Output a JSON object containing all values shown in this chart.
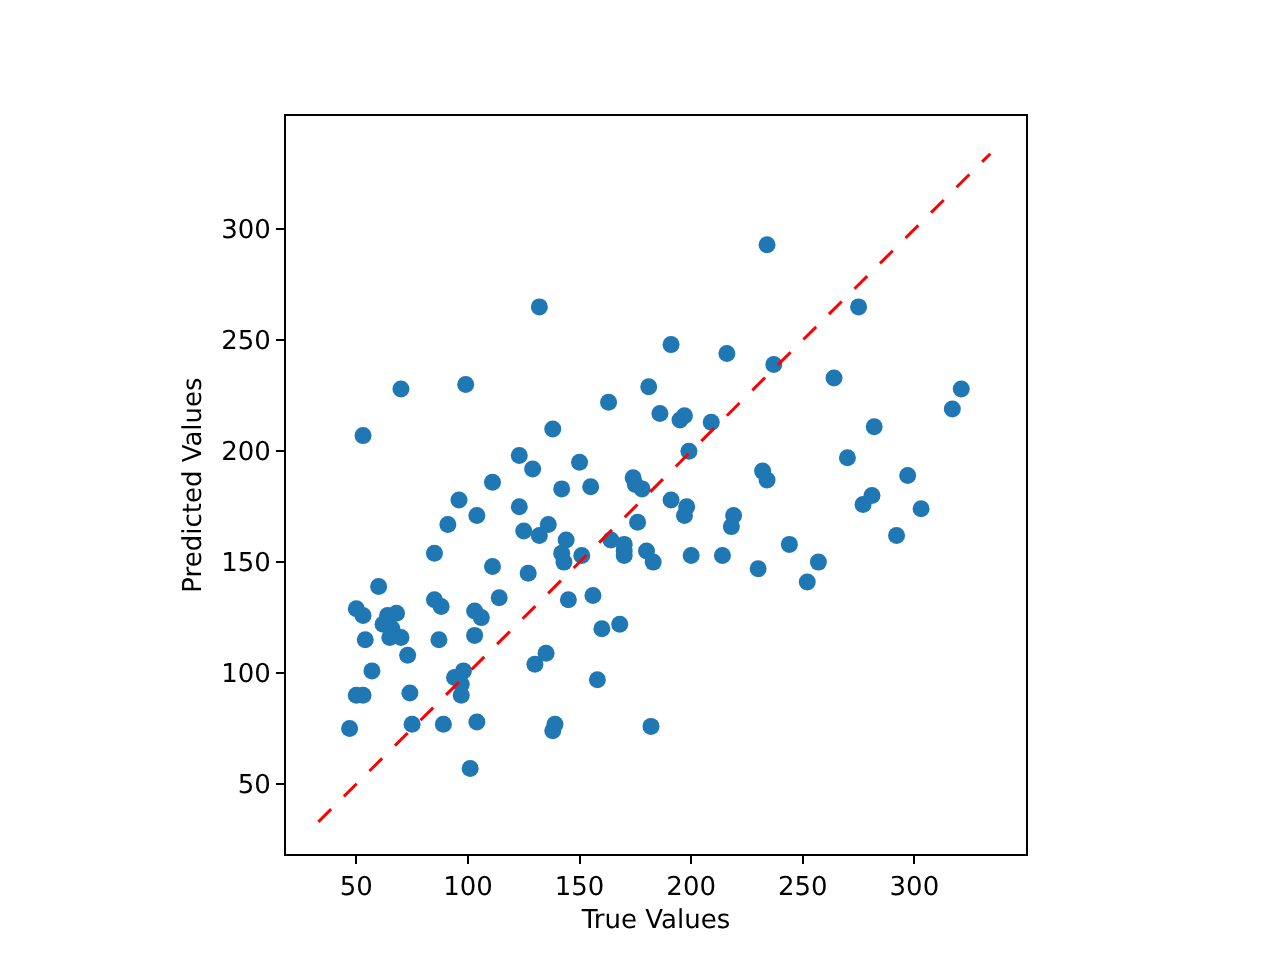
{
  "chart_data": {
    "type": "scatter",
    "xlabel": "True Values",
    "ylabel": "Predicted Values",
    "xlim": [
      18.5,
      350
    ],
    "ylim": [
      18.5,
      351
    ],
    "xticks": [
      50,
      100,
      150,
      200,
      250,
      300
    ],
    "yticks": [
      50,
      100,
      150,
      200,
      250,
      300
    ],
    "marker": "circle",
    "series": [
      {
        "color": "#1f77b4",
        "x": [
          47,
          50,
          53,
          50,
          53,
          53,
          54,
          57,
          60,
          62,
          64,
          66,
          68,
          65,
          70,
          70,
          73,
          74,
          75,
          85,
          85,
          87,
          88,
          89,
          91,
          94,
          96,
          97,
          97,
          98,
          99,
          101,
          103,
          103,
          104,
          104,
          106,
          111,
          111,
          114,
          123,
          123,
          125,
          127,
          129,
          130,
          132,
          132,
          135,
          136,
          138,
          138,
          139,
          142,
          142,
          144,
          143,
          145,
          150,
          151,
          155,
          156,
          158,
          160,
          163,
          164,
          168,
          170,
          170,
          170,
          174,
          175,
          176,
          178,
          180,
          181,
          182,
          183,
          186,
          191,
          191,
          195,
          197,
          197,
          198,
          199,
          200,
          209,
          214,
          216,
          218,
          219,
          230,
          232,
          234,
          234,
          237,
          244,
          252,
          257,
          264,
          270,
          275,
          277,
          281,
          282,
          292,
          297,
          303,
          317,
          321
        ],
        "values": [
          75,
          90,
          90,
          129,
          126,
          207,
          115,
          101,
          139,
          122,
          126,
          120,
          127,
          116,
          116,
          228,
          108,
          91,
          77,
          154,
          133,
          115,
          130,
          77,
          167,
          98,
          178,
          95,
          90,
          101,
          230,
          57,
          128,
          117,
          171,
          78,
          125,
          186,
          148,
          134,
          175,
          198,
          164,
          145,
          192,
          104,
          162,
          265,
          109,
          167,
          210,
          74,
          77,
          183,
          154,
          160,
          150,
          133,
          195,
          153,
          184,
          135,
          97,
          120,
          222,
          160,
          122,
          155,
          153,
          158,
          188,
          185,
          168,
          183,
          155,
          229,
          76,
          150,
          217,
          248,
          178,
          214,
          171,
          216,
          175,
          200,
          153,
          213,
          153,
          244,
          166,
          171,
          147,
          191,
          293,
          187,
          239,
          158,
          141,
          150,
          233,
          197,
          265,
          176,
          180,
          211,
          162,
          189,
          174,
          219,
          228
        ]
      },
      {
        "color": "#ff0000",
        "type": "line",
        "line_style": "dashed",
        "marker": "none",
        "x": [
          33,
          334
        ],
        "values": [
          33,
          334
        ]
      }
    ]
  }
}
